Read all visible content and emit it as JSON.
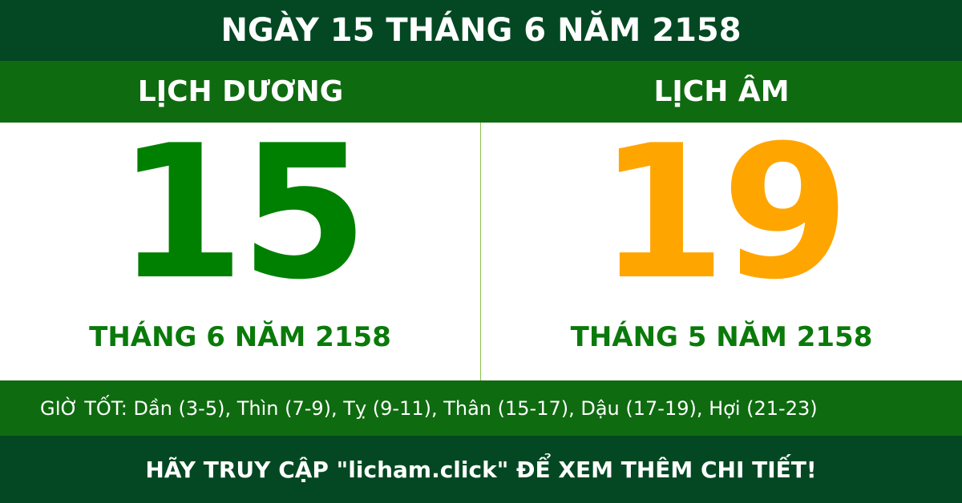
{
  "title": "NGÀY 15 THÁNG 6 NĂM 2158",
  "solar": {
    "label": "LỊCH DƯƠNG",
    "day": "15",
    "month_year": "THÁNG 6 NĂM 2158"
  },
  "lunar": {
    "label": "LỊCH ÂM",
    "day": "19",
    "month_year": "THÁNG 5 NĂM 2158"
  },
  "good_hours": "GIỜ TỐT: Dần (3-5), Thìn (7-9), Tỵ (9-11), Thân (15-17), Dậu (17-19), Hợi (21-23)",
  "footer": "HÃY TRUY CẬP \"licham.click\" ĐỂ XEM THÊM CHI TIẾT!",
  "colors": {
    "dark_green": "#034822",
    "green": "#0f6b10",
    "solar_day": "#008000",
    "lunar_day": "#ffa500"
  }
}
